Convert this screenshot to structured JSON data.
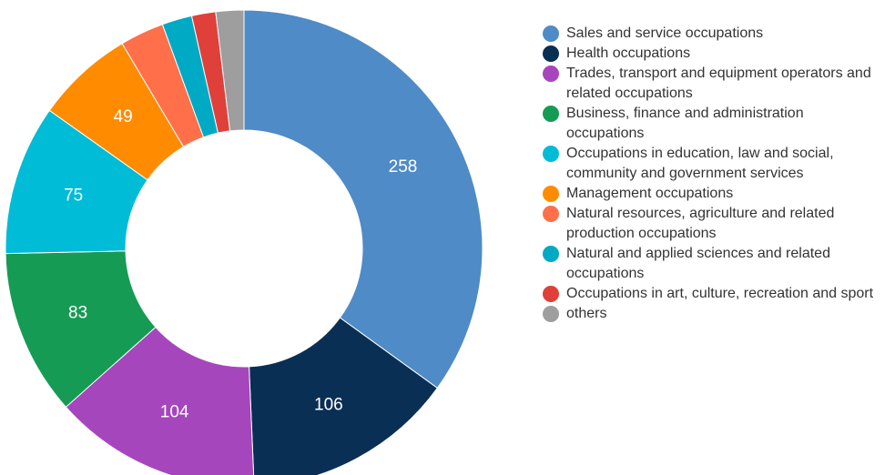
{
  "chart_data": {
    "type": "donut",
    "categories": [
      "Sales and service occupations",
      "Health occupations",
      "Trades, transport and equipment operators and related occupations",
      "Business, finance and administration occupations",
      "Occupations in education, law and social, community and government services",
      "Management occupations",
      "Natural resources, agriculture and related production occupations",
      "Natural and applied sciences and related occupations",
      "Occupations in art, culture, recreation and sport",
      "others"
    ],
    "values": [
      258,
      106,
      104,
      83,
      75,
      49,
      22,
      15,
      12,
      14
    ],
    "colors": [
      "#4f8bc6",
      "#0a2f55",
      "#a646bd",
      "#169b55",
      "#00bcd6",
      "#ff8c00",
      "#ff6f4a",
      "#00a9c4",
      "#e0403a",
      "#9e9e9e"
    ]
  }
}
